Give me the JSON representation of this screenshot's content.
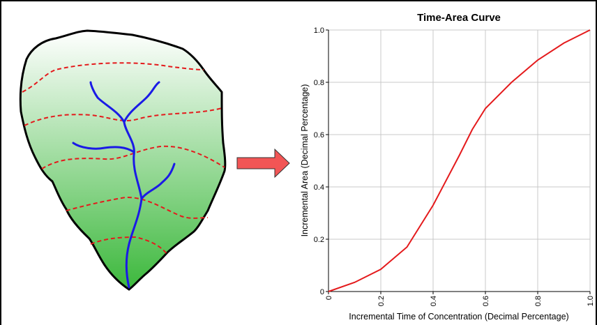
{
  "chart_data": {
    "type": "line",
    "title": "Time-Area Curve",
    "x_label": "Incremental Time of Concentration (Decimal Percentage)",
    "y_label": "Incremental Area (Decimal Percentage)",
    "x": [
      0,
      0.1,
      0.2,
      0.3,
      0.4,
      0.5,
      0.55,
      0.6,
      0.7,
      0.8,
      0.9,
      1
    ],
    "series": [
      {
        "color": "#e41a1c",
        "values": [
          0,
          0.035,
          0.085,
          0.17,
          0.33,
          0.52,
          0.62,
          0.7,
          0.8,
          0.885,
          0.95,
          1
        ]
      }
    ],
    "xlim": [
      0,
      1
    ],
    "ylim": [
      0,
      1
    ],
    "xticks": [
      0,
      0.2,
      0.4,
      0.6,
      0.8,
      {
        "value": 1,
        "label": "1.0"
      }
    ],
    "yticks": [
      0,
      0.2,
      0.4,
      0.6,
      0.8,
      {
        "value": 1,
        "label": "1.0"
      }
    ],
    "grid": true
  }
}
